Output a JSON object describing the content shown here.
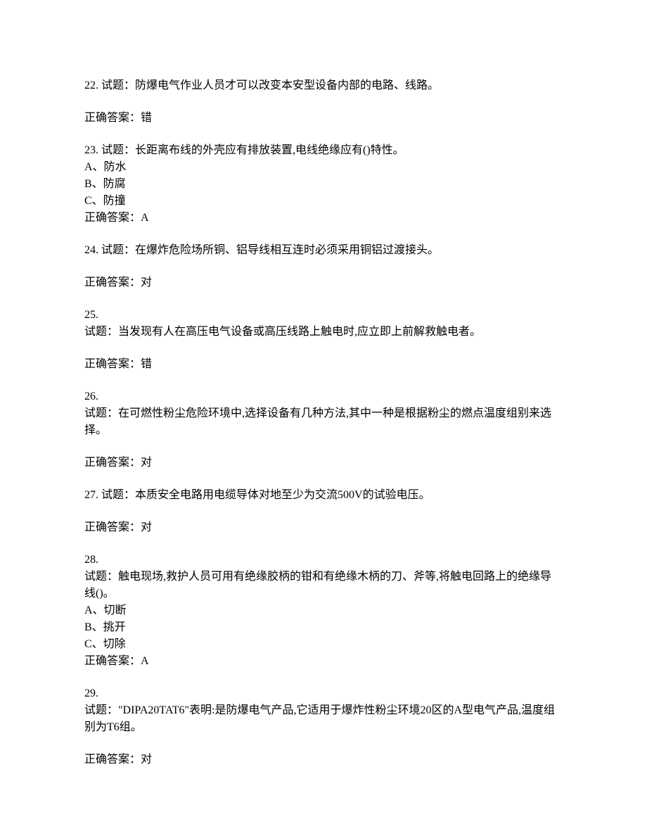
{
  "questions": [
    {
      "number": "22.",
      "label": "试题：",
      "text": "防爆电气作业人员才可以改变本安型设备内部的电路、线路。",
      "answer_label": "正确答案：",
      "answer": "错",
      "inline": true,
      "answer_spaced": true
    },
    {
      "number": "23.",
      "label": "试题：",
      "text": "长距离布线的外壳应有排放装置,电线绝缘应有()特性。",
      "options": [
        "A、防水",
        "B、防腐",
        "C、防撞"
      ],
      "answer_label": "正确答案：",
      "answer": "A",
      "inline": true,
      "answer_spaced": false
    },
    {
      "number": "24.",
      "label": "试题：",
      "text": "在爆炸危险场所铜、铝导线相互连时必须采用铜铝过渡接头。",
      "answer_label": "正确答案：",
      "answer": "对",
      "inline": true,
      "answer_spaced": true
    },
    {
      "number": "25.",
      "label": "试题：",
      "text": "当发现有人在高压电气设备或高压线路上触电时,应立即上前解救触电者。",
      "answer_label": "正确答案：",
      "answer": "错",
      "inline": false,
      "answer_spaced": true
    },
    {
      "number": "26.",
      "label": "试题：",
      "text": "在可燃性粉尘危险环境中,选择设备有几种方法,其中一种是根据粉尘的燃点温度组别来选择。",
      "answer_label": "正确答案：",
      "answer": "对",
      "inline": false,
      "answer_spaced": true
    },
    {
      "number": "27.",
      "label": "试题：",
      "text": "本质安全电路用电缆导体对地至少为交流500V的试验电压。",
      "answer_label": "正确答案：",
      "answer": "对",
      "inline": true,
      "answer_spaced": true
    },
    {
      "number": "28.",
      "label": "试题：",
      "text": "触电现场,救护人员可用有绝缘胶柄的钳和有绝缘木柄的刀、斧等,将触电回路上的绝缘导线()。",
      "options": [
        "A、切断",
        "B、挑开",
        "C、切除"
      ],
      "answer_label": "正确答案：",
      "answer": "A",
      "inline": false,
      "answer_spaced": false
    },
    {
      "number": "29.",
      "label": "试题：",
      "text": "\"DIPA20TAT6\"表明:是防爆电气产品,它适用于爆炸性粉尘环境20区的A型电气产品,温度组别为T6组。",
      "answer_label": "正确答案：",
      "answer": "对",
      "inline": false,
      "answer_spaced": true
    }
  ]
}
